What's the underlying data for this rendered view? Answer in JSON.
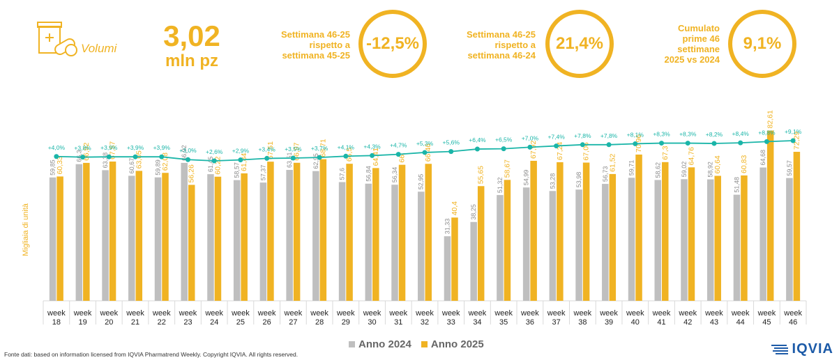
{
  "header": {
    "volumi_label": "Volumi",
    "main_value": "3,02",
    "main_unit": "mln pz",
    "kpis": [
      {
        "text_lines": [
          "Settimana 46-25",
          "rispetto a",
          "settimana 45-25"
        ],
        "value": "-12,5%"
      },
      {
        "text_lines": [
          "Settimana 46-25",
          "rispetto a",
          "settimana 46-24"
        ],
        "value": "21,4%"
      },
      {
        "text_lines": [
          "Cumulato",
          "prime 46",
          "settimane",
          "2025 vs 2024"
        ],
        "value": "9,1%"
      }
    ]
  },
  "chart_data": {
    "type": "bar",
    "ylabel": "Migliaia di unità",
    "categories": [
      [
        "week",
        "18"
      ],
      [
        "week",
        "19"
      ],
      [
        "week",
        "20"
      ],
      [
        "week",
        "21"
      ],
      [
        "week",
        "22"
      ],
      [
        "week",
        "23"
      ],
      [
        "week",
        "24"
      ],
      [
        "week",
        "25"
      ],
      [
        "week",
        "26"
      ],
      [
        "week",
        "27"
      ],
      [
        "week",
        "28"
      ],
      [
        "week",
        "29"
      ],
      [
        "week",
        "30"
      ],
      [
        "week",
        "31"
      ],
      [
        "week",
        "32"
      ],
      [
        "week",
        "33"
      ],
      [
        "week",
        "34"
      ],
      [
        "week",
        "35"
      ],
      [
        "week",
        "36"
      ],
      [
        "week",
        "37"
      ],
      [
        "week",
        "38"
      ],
      [
        "week",
        "39"
      ],
      [
        "week",
        "40"
      ],
      [
        "week",
        "41"
      ],
      [
        "week",
        "42"
      ],
      [
        "week",
        "43"
      ],
      [
        "week",
        "44"
      ],
      [
        "week",
        "45"
      ],
      [
        "week",
        "46"
      ]
    ],
    "series": [
      {
        "name": "Anno 2024",
        "color": "#bfbfbf",
        "values": [
          59.85,
          66.3,
          63.38,
          60.67,
          59.89,
          66.92,
          61.45,
          58.57,
          57.37,
          63.51,
          62.95,
          57.6,
          56.84,
          56.34,
          52.95,
          31.33,
          38.25,
          51.32,
          54.99,
          53.28,
          53.98,
          56.73,
          59.71,
          58.62,
          59.02,
          58.92,
          51.48,
          64.68,
          59.57
        ],
        "labels": [
          "59,85",
          "66,3",
          "63,38",
          "60,67",
          "59,89",
          "66,92",
          "61,45",
          "58,57",
          "57,37",
          "63,51",
          "62,95",
          "57,6",
          "56,84",
          "56,34",
          "52,95",
          "31,33",
          "38,25",
          "51,32",
          "54,99",
          "53,28",
          "53,98",
          "56,73",
          "59,71",
          "58,62",
          "59,02",
          "58,92",
          "51,48",
          "64,68",
          "59,57"
        ]
      },
      {
        "name": "Anno 2025",
        "color": "#f0b323",
        "values": [
          60.33,
          66.92,
          67.57,
          63.05,
          62.08,
          56.26,
          60.22,
          61.84,
          67.51,
          66.97,
          68.71,
          66.5,
          64.41,
          66.0,
          66.46,
          40.4,
          55.65,
          58.67,
          67.92,
          67.24,
          67.06,
          61.52,
          70.96,
          67.3,
          64.76,
          60.64,
          60.83,
          82.61,
          72.29
        ],
        "labels": [
          "60,33",
          "66,92",
          "67,57",
          "63,05",
          "62,08",
          "56,26",
          "60,22",
          "61,84",
          "67,51",
          "66,97",
          "68,71",
          "66,5",
          "64,41",
          "66,",
          "66,46",
          "40,4",
          "55,65",
          "58,67",
          "67,92",
          "67,24",
          "67,06",
          "61,52",
          "70,96",
          "67,3",
          "64,76",
          "60,64",
          "60,83",
          "82,61",
          "72,29"
        ]
      }
    ],
    "cumulative": {
      "color": "#1ab5a8",
      "values": [
        4.0,
        3.8,
        3.9,
        3.9,
        3.9,
        3.0,
        2.6,
        2.9,
        3.4,
        3.5,
        3.7,
        4.1,
        4.3,
        4.7,
        5.3,
        5.6,
        6.4,
        6.5,
        7.0,
        7.4,
        7.8,
        7.8,
        8.1,
        8.3,
        8.3,
        8.2,
        8.4,
        8.8,
        9.1
      ],
      "labels": [
        "+4,0%",
        "+3,8%",
        "+3,9%",
        "+3,9%",
        "+3,9%",
        "+3,0%",
        "+2,6%",
        "+2,9%",
        "+3,4%",
        "+3,5%",
        "+3,7%",
        "+4,1%",
        "+4,3%",
        "+4,7%",
        "+5,3%",
        "+5,6%",
        "+6,4%",
        "+6,5%",
        "+7,0%",
        "+7,4%",
        "+7,8%",
        "+7,8%",
        "+8,1%",
        "+8,3%",
        "+8,3%",
        "+8,2%",
        "+8,4%",
        "+8,8%",
        "+9,1%"
      ]
    },
    "legend_position": "bottom"
  },
  "footer": {
    "source": "Fonte dati: based on information licensed from IQVIA Pharmatrend Weekly. Copyright IQVIA. All rights reserved.",
    "logo_text": "IQVIA"
  }
}
